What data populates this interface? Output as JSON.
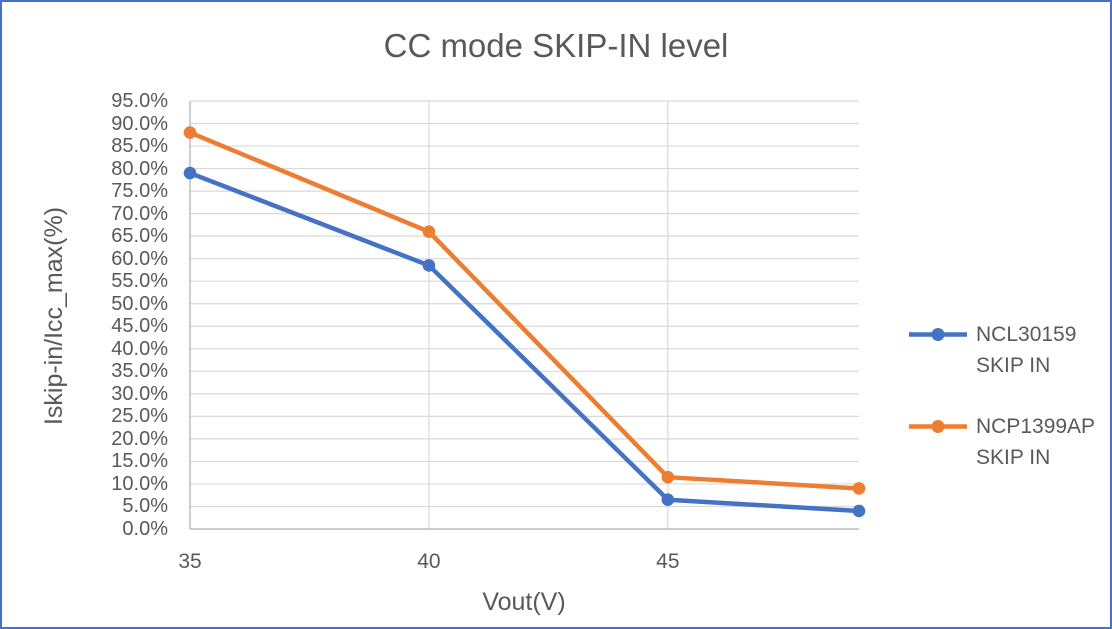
{
  "chart_data": {
    "type": "line",
    "title": "CC mode SKIP-IN level",
    "xlabel": "Vout(V)",
    "ylabel": "Iskip-in/Icc_max(%)",
    "x": [
      35,
      40,
      45,
      49
    ],
    "series": [
      {
        "name": "NCL30159 SKIP IN",
        "legend_lines": [
          "NCL30159",
          "SKIP IN"
        ],
        "color": "#4472C4",
        "values": [
          79.0,
          58.5,
          6.5,
          4.0
        ]
      },
      {
        "name": "NCP1399AP SKIP IN",
        "legend_lines": [
          "NCP1399AP",
          "SKIP IN"
        ],
        "color": "#ED7D31",
        "values": [
          88.0,
          66.0,
          11.5,
          9.0
        ]
      }
    ],
    "xlim": [
      35,
      49
    ],
    "ylim": [
      0,
      95
    ],
    "x_tick_values": [
      35,
      40,
      45
    ],
    "x_tick_labels": [
      "35",
      "40",
      "45"
    ],
    "x_gridline_values": [
      40,
      45
    ],
    "y_tick_values": [
      0,
      5,
      10,
      15,
      20,
      25,
      30,
      35,
      40,
      45,
      50,
      55,
      60,
      65,
      70,
      75,
      80,
      85,
      90,
      95
    ],
    "y_tick_labels": [
      "0.0%",
      "5.0%",
      "10.0%",
      "15.0%",
      "20.0%",
      "25.0%",
      "30.0%",
      "35.0%",
      "40.0%",
      "45.0%",
      "50.0%",
      "55.0%",
      "60.0%",
      "65.0%",
      "70.0%",
      "75.0%",
      "80.0%",
      "85.0%",
      "90.0%",
      "95.0%"
    ],
    "grid": true,
    "legend_position": "right",
    "marker": "circle"
  },
  "colors": {
    "gridline": "#D9D9D9",
    "axis_line": "#BFBFBF",
    "text": "#595959",
    "border": "#4472C4",
    "background": "#FFFFFF"
  }
}
